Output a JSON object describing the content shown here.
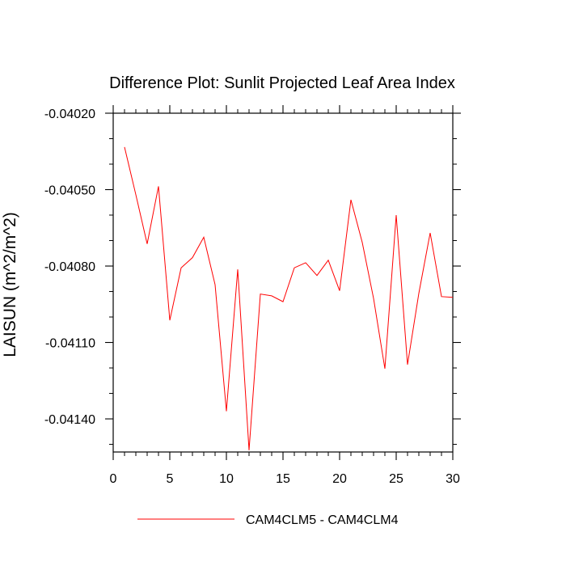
{
  "chart_data": {
    "type": "line",
    "title": "Difference Plot: Sunlit Projected Leaf Area Index",
    "xlabel": "",
    "ylabel": "LAISUN  (m^2/m^2)",
    "xlim": [
      0,
      30
    ],
    "ylim": [
      -0.04153,
      -0.0402
    ],
    "x_ticks": [
      0,
      5,
      10,
      15,
      20,
      25,
      30
    ],
    "x_tick_labels": [
      "0",
      "5",
      "10",
      "15",
      "20",
      "25",
      "30"
    ],
    "y_ticks": [
      -0.0402,
      -0.0405,
      -0.0408,
      -0.0411,
      -0.0414
    ],
    "y_tick_labels": [
      "-0.04020",
      "-0.04050",
      "-0.04080",
      "-0.04110",
      "-0.04140"
    ],
    "grid": false,
    "legend_position": "bottom",
    "series": [
      {
        "name": "CAM4CLM5 - CAM4CLM4",
        "color": "#ff0000",
        "x": [
          1,
          2,
          3,
          4,
          5,
          6,
          7,
          8,
          9,
          10,
          11,
          12,
          13,
          14,
          15,
          16,
          17,
          18,
          19,
          20,
          21,
          22,
          23,
          24,
          25,
          26,
          27,
          28,
          29,
          30
        ],
        "y": [
          -0.040333,
          -0.04052,
          -0.040713,
          -0.040487,
          -0.041013,
          -0.040807,
          -0.040767,
          -0.040687,
          -0.040873,
          -0.04137,
          -0.040813,
          -0.041523,
          -0.04091,
          -0.040917,
          -0.04094,
          -0.040807,
          -0.040787,
          -0.040837,
          -0.040777,
          -0.040897,
          -0.04054,
          -0.040707,
          -0.040927,
          -0.041203,
          -0.0406,
          -0.041187,
          -0.040907,
          -0.04067,
          -0.04092,
          -0.040923
        ]
      }
    ]
  }
}
